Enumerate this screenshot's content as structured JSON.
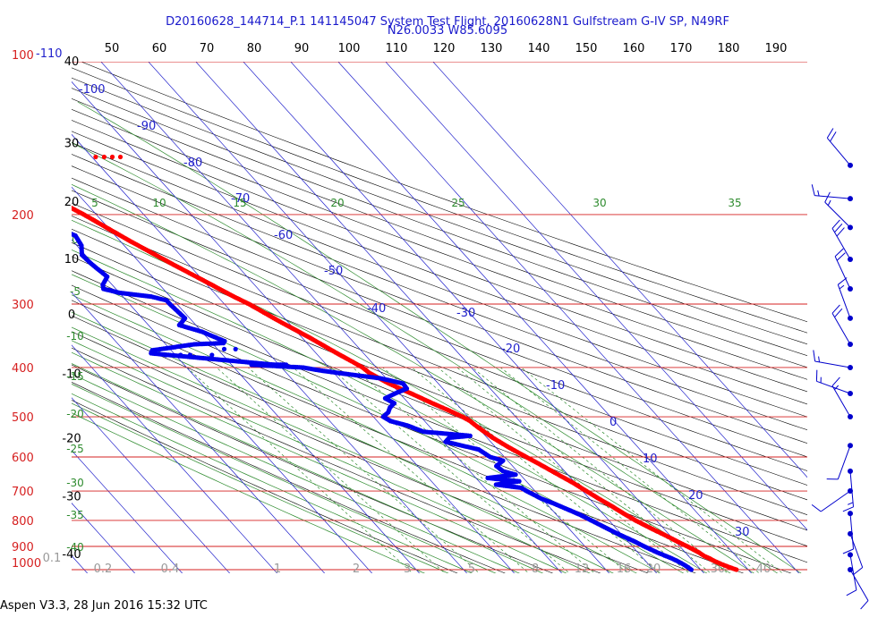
{
  "header": {
    "line1": "D20160628_144714_P.1 141145047 System Test Flight, 20160628N1 Gulfstream G-IV SP, N49RF",
    "line2": "N26.0033 W85.6095"
  },
  "footer": {
    "text": "Aspen V3.3, 28 Jun 2016  15:32 UTC"
  },
  "chart_data": {
    "type": "scatter",
    "diagram": "skew-T log-P",
    "colors": {
      "isobar": "#d62020",
      "pressure_label": "#d62020",
      "isotherm": "#2222cc",
      "isotherm_label": "#2222cc",
      "dry_adiabat": "#000000",
      "moist_adiabat": "#2e8b2e",
      "mixing_ratio": "#2e8b2e",
      "temperature": "#ff0000",
      "dewpoint": "#0000ee",
      "wind": "#0000cc",
      "header": "#1a1acc"
    },
    "pressure_labels": [
      "100",
      "200",
      "300",
      "400",
      "500",
      "600",
      "700",
      "800",
      "900",
      "1000"
    ],
    "pressure_levels_hpa": [
      100,
      200,
      300,
      400,
      500,
      600,
      700,
      800,
      900,
      1000
    ],
    "top_scale_labels": [
      "50",
      "60",
      "70",
      "80",
      "90",
      "100",
      "110",
      "120",
      "130",
      "140",
      "150",
      "160",
      "170",
      "180",
      "190"
    ],
    "left_scale_labels": [
      {
        "text": "40",
        "p": 100
      },
      {
        "text": "30",
        "p": 145
      },
      {
        "text": "20",
        "p": 189
      },
      {
        "text": "10",
        "p": 245
      },
      {
        "text": "0",
        "p": 315
      },
      {
        "text": "-10",
        "p": 412
      },
      {
        "text": "-20",
        "p": 552
      },
      {
        "text": "-30",
        "p": 718
      },
      {
        "text": "-40",
        "p": 934
      }
    ],
    "moist_labels_top": [
      "5",
      "10",
      "15",
      "20",
      "25",
      "30",
      "35"
    ],
    "moist_labels_left": [
      "0",
      "-5",
      "-10",
      "-15",
      "-20",
      "-25",
      "-30",
      "-35",
      "-40"
    ],
    "isotherm_labels": [
      "-110",
      "-100",
      "-90",
      "-80",
      "-70",
      "-60",
      "-50",
      "-40",
      "-30",
      "-20",
      "-10",
      "0",
      "10",
      "20",
      "30"
    ],
    "mixing_ratio_labels": [
      "0.1",
      "0.2",
      "0.4",
      "1",
      "2",
      "3",
      "5",
      "8",
      "12",
      "16",
      "20",
      "30",
      "40"
    ],
    "temperature_profile": [
      {
        "p": 1000,
        "t": 27.5
      },
      {
        "p": 990,
        "t": 26.6
      },
      {
        "p": 975,
        "t": 25.4
      },
      {
        "p": 960,
        "t": 24.4
      },
      {
        "p": 950,
        "t": 24.0
      },
      {
        "p": 940,
        "t": 23.3
      },
      {
        "p": 925,
        "t": 22.9
      },
      {
        "p": 910,
        "t": 22.1
      },
      {
        "p": 900,
        "t": 21.6
      },
      {
        "p": 880,
        "t": 20.4
      },
      {
        "p": 860,
        "t": 19.3
      },
      {
        "p": 850,
        "t": 18.7
      },
      {
        "p": 830,
        "t": 17.4
      },
      {
        "p": 800,
        "t": 15.6
      },
      {
        "p": 775,
        "t": 14.4
      },
      {
        "p": 750,
        "t": 13.3
      },
      {
        "p": 725,
        "t": 12.0
      },
      {
        "p": 700,
        "t": 10.8
      },
      {
        "p": 675,
        "t": 9.6
      },
      {
        "p": 650,
        "t": 8.0
      },
      {
        "p": 625,
        "t": 6.4
      },
      {
        "p": 600,
        "t": 4.6
      },
      {
        "p": 575,
        "t": 2.8
      },
      {
        "p": 550,
        "t": 1.2
      },
      {
        "p": 525,
        "t": 0.1
      },
      {
        "p": 510,
        "t": -0.4
      },
      {
        "p": 500,
        "t": -1.2
      },
      {
        "p": 485,
        "t": -3.0
      },
      {
        "p": 470,
        "t": -5.0
      },
      {
        "p": 450,
        "t": -7.6
      },
      {
        "p": 430,
        "t": -10.4
      },
      {
        "p": 410,
        "t": -12.5
      },
      {
        "p": 400,
        "t": -12.9
      },
      {
        "p": 390,
        "t": -13.9
      },
      {
        "p": 375,
        "t": -15.6
      },
      {
        "p": 350,
        "t": -18.3
      },
      {
        "p": 325,
        "t": -21.6
      },
      {
        "p": 300,
        "t": -24.8
      },
      {
        "p": 290,
        "t": -26.6
      },
      {
        "p": 275,
        "t": -29.0
      },
      {
        "p": 250,
        "t": -33.4
      },
      {
        "p": 225,
        "t": -38.0
      },
      {
        "p": 200,
        "t": -42.6
      },
      {
        "p": 190,
        "t": -45.0
      },
      {
        "p": 180,
        "t": -47.8
      },
      {
        "p": 170,
        "t": -50.6
      },
      {
        "p": 162,
        "t": -52.4
      },
      {
        "p": 157,
        "t": -52.0
      },
      {
        "p": 155,
        "t": -49.0
      },
      {
        "p": 154,
        "t": -47.5
      }
    ],
    "temperature_outliers": [
      {
        "p": 147,
        "t": -54.8
      },
      {
        "p": 154,
        "t": -29.2
      },
      {
        "p": 154,
        "t": -27.4
      },
      {
        "p": 154,
        "t": -25.7
      },
      {
        "p": 154,
        "t": -24.0
      }
    ],
    "dewpoint_profile": [
      {
        "p": 1000,
        "t": 18.0
      },
      {
        "p": 990,
        "t": 17.8
      },
      {
        "p": 975,
        "t": 17.3
      },
      {
        "p": 960,
        "t": 16.6
      },
      {
        "p": 950,
        "t": 16.0
      },
      {
        "p": 925,
        "t": 14.1
      },
      {
        "p": 900,
        "t": 12.5
      },
      {
        "p": 880,
        "t": 11.4
      },
      {
        "p": 850,
        "t": 9.3
      },
      {
        "p": 825,
        "t": 7.8
      },
      {
        "p": 800,
        "t": 6.3
      },
      {
        "p": 780,
        "t": 5.0
      },
      {
        "p": 760,
        "t": 3.3
      },
      {
        "p": 740,
        "t": 1.5
      },
      {
        "p": 725,
        "t": -0.1
      },
      {
        "p": 710,
        "t": -1.1
      },
      {
        "p": 700,
        "t": -1.8
      },
      {
        "p": 690,
        "t": -2.3
      },
      {
        "p": 680,
        "t": -7.0
      },
      {
        "p": 670,
        "t": -1.5
      },
      {
        "p": 660,
        "t": -7.5
      },
      {
        "p": 650,
        "t": -1.0
      },
      {
        "p": 640,
        "t": -3.0
      },
      {
        "p": 625,
        "t": -3.4
      },
      {
        "p": 610,
        "t": -1.0
      },
      {
        "p": 600,
        "t": -3.0
      },
      {
        "p": 580,
        "t": -4.0
      },
      {
        "p": 560,
        "t": -9.5
      },
      {
        "p": 550,
        "t": -8.0
      },
      {
        "p": 545,
        "t": -3.2
      },
      {
        "p": 535,
        "t": -12.3
      },
      {
        "p": 520,
        "t": -14.5
      },
      {
        "p": 510,
        "t": -17.2
      },
      {
        "p": 500,
        "t": -17.9
      },
      {
        "p": 490,
        "t": -16.0
      },
      {
        "p": 480,
        "t": -14.8
      },
      {
        "p": 470,
        "t": -13.0
      },
      {
        "p": 460,
        "t": -14.0
      },
      {
        "p": 450,
        "t": -11.0
      },
      {
        "p": 440,
        "t": -7.6
      },
      {
        "p": 430,
        "t": -7.4
      },
      {
        "p": 420,
        "t": -11.2
      },
      {
        "p": 410,
        "t": -19.0
      },
      {
        "p": 405,
        "t": -22.6
      },
      {
        "p": 400,
        "t": -25.4
      },
      {
        "p": 395,
        "t": -35.8
      },
      {
        "p": 395,
        "t": -28.5
      },
      {
        "p": 395,
        "t": -30.8
      },
      {
        "p": 375,
        "t": -54.8
      },
      {
        "p": 370,
        "t": -54.0
      },
      {
        "p": 360,
        "t": -44.0
      },
      {
        "p": 358,
        "t": -37.6
      },
      {
        "p": 355,
        "t": -37.0
      },
      {
        "p": 340,
        "t": -40.0
      },
      {
        "p": 330,
        "t": -43.5
      },
      {
        "p": 320,
        "t": -41.0
      },
      {
        "p": 300,
        "t": -41.5
      },
      {
        "p": 295,
        "t": -41.5
      },
      {
        "p": 290,
        "t": -44.0
      },
      {
        "p": 285,
        "t": -50.0
      },
      {
        "p": 280,
        "t": -52.6
      },
      {
        "p": 275,
        "t": -52.0
      },
      {
        "p": 265,
        "t": -49.5
      },
      {
        "p": 250,
        "t": -50.4
      },
      {
        "p": 240,
        "t": -50.7
      },
      {
        "p": 230,
        "t": -49.0
      },
      {
        "p": 220,
        "t": -48.4
      },
      {
        "p": 210,
        "t": -51.9
      },
      {
        "p": 200,
        "t": -56.0
      },
      {
        "p": 190,
        "t": -61.1
      },
      {
        "p": 183,
        "t": -64.2
      }
    ],
    "dewpoint_outliers": [
      {
        "p": 378,
        "t": -52.0
      },
      {
        "p": 378,
        "t": -48.9
      },
      {
        "p": 378,
        "t": -46.9
      },
      {
        "p": 378,
        "t": -42.3
      },
      {
        "p": 368,
        "t": -38.6
      },
      {
        "p": 368,
        "t": -36.2
      },
      {
        "p": 147,
        "t": -55.0
      }
    ],
    "wind_barbs": [
      {
        "p": 160,
        "speed_kt": 20,
        "dir_deg": 320
      },
      {
        "p": 186,
        "speed_kt": 15,
        "dir_deg": 275
      },
      {
        "p": 212,
        "speed_kt": 15,
        "dir_deg": 315
      },
      {
        "p": 245,
        "speed_kt": 30,
        "dir_deg": 330
      },
      {
        "p": 280,
        "speed_kt": 20,
        "dir_deg": 335
      },
      {
        "p": 320,
        "speed_kt": 15,
        "dir_deg": 340
      },
      {
        "p": 360,
        "speed_kt": 20,
        "dir_deg": 330
      },
      {
        "p": 400,
        "speed_kt": 15,
        "dir_deg": 280
      },
      {
        "p": 450,
        "speed_kt": 15,
        "dir_deg": 290
      },
      {
        "p": 500,
        "speed_kt": 15,
        "dir_deg": 330
      },
      {
        "p": 570,
        "speed_kt": 10,
        "dir_deg": 200
      },
      {
        "p": 640,
        "speed_kt": 15,
        "dir_deg": 175
      },
      {
        "p": 700,
        "speed_kt": 10,
        "dir_deg": 235
      },
      {
        "p": 775,
        "speed_kt": 10,
        "dir_deg": 175
      },
      {
        "p": 850,
        "speed_kt": 10,
        "dir_deg": 160
      },
      {
        "p": 935,
        "speed_kt": 10,
        "dir_deg": 170
      },
      {
        "p": 1000,
        "speed_kt": 10,
        "dir_deg": 150
      }
    ],
    "grid": true,
    "skew": "45 degree isotherms, log-p vertical axis"
  }
}
